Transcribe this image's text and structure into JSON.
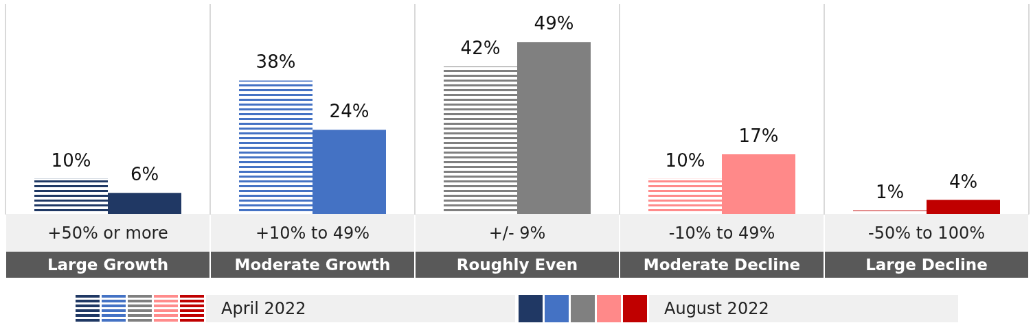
{
  "chart_data": {
    "type": "bar",
    "categories": [
      "+50% or more\nLarge Growth",
      "+10% to 49%\nModerate Growth",
      "+/- 9%\nRoughly Even",
      "-10% to 49%\nModerate Decline",
      "-50% to 100%\nLarge Decline"
    ],
    "series": [
      {
        "name": "April 2022",
        "colors": [
          "#1f3864",
          "#4472c4",
          "#7f7f7f",
          "#ff8b8b",
          "#c00000"
        ],
        "values": [
          10,
          38,
          42,
          10,
          1
        ],
        "value_labels": [
          "10%",
          "38%",
          "42%",
          "10%",
          "1%"
        ]
      },
      {
        "name": "August 2022",
        "colors": [
          "#203864",
          "#4472c4",
          "#808080",
          "#ff8989",
          "#c00000"
        ],
        "values": [
          6,
          24,
          49,
          17,
          4
        ],
        "value_labels": [
          "6%",
          "24%",
          "49%",
          "17%",
          "4%"
        ]
      }
    ],
    "grid": "x",
    "legend": "bottom"
  }
}
